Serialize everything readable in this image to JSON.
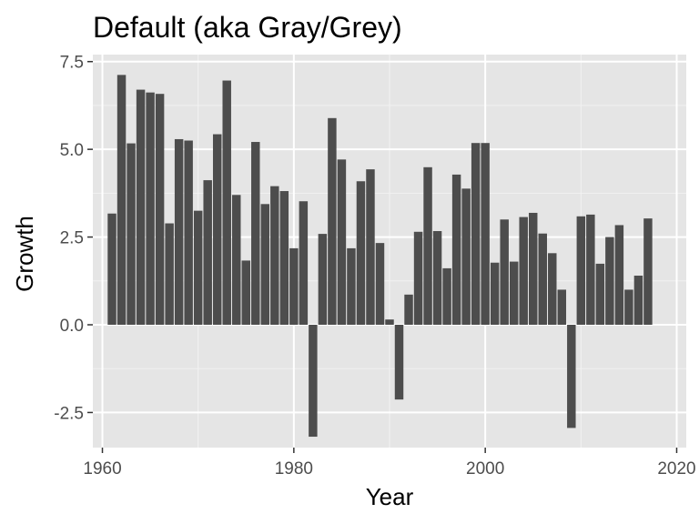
{
  "chart_data": {
    "type": "bar",
    "title": "Default (aka Gray/Grey)",
    "xlabel": "Year",
    "ylabel": "Growth",
    "xlim": [
      1959,
      2021
    ],
    "ylim": [
      -3.5,
      7.7
    ],
    "x_ticks": [
      1960,
      1980,
      2000,
      2020
    ],
    "x_tick_labels": [
      "1960",
      "1980",
      "2000",
      "2020"
    ],
    "y_ticks": [
      -2.5,
      0,
      2.5,
      5,
      7.5
    ],
    "y_tick_labels": [
      "-2.5",
      "0.0",
      "2.5",
      "5.0",
      "7.5"
    ],
    "x": [
      1961,
      1962,
      1963,
      1964,
      1965,
      1966,
      1967,
      1968,
      1969,
      1970,
      1971,
      1972,
      1973,
      1974,
      1975,
      1976,
      1977,
      1978,
      1979,
      1980,
      1981,
      1982,
      1983,
      1984,
      1985,
      1986,
      1987,
      1988,
      1989,
      1990,
      1991,
      1992,
      1993,
      1994,
      1995,
      1996,
      1997,
      1998,
      1999,
      2000,
      2001,
      2002,
      2003,
      2004,
      2005,
      2006,
      2007,
      2008,
      2009,
      2010,
      2011,
      2012,
      2013,
      2014,
      2015,
      2016,
      2017
    ],
    "values": [
      3.17,
      7.12,
      5.17,
      6.7,
      6.62,
      6.58,
      2.89,
      5.29,
      5.25,
      3.25,
      4.12,
      5.43,
      6.96,
      3.7,
      1.83,
      5.21,
      3.44,
      3.95,
      3.81,
      2.18,
      3.52,
      -3.19,
      2.59,
      5.89,
      4.71,
      2.18,
      4.09,
      4.43,
      2.33,
      0.15,
      -2.13,
      0.86,
      2.65,
      4.49,
      2.67,
      1.61,
      4.28,
      3.88,
      5.18,
      5.18,
      1.77,
      3.0,
      1.8,
      3.07,
      3.19,
      2.6,
      2.04,
      1.0,
      -2.94,
      3.09,
      3.14,
      1.74,
      2.5,
      2.84,
      1.0,
      1.4,
      3.03
    ],
    "colors": {
      "panel_background": "#e5e5e5",
      "grid_major": "#ffffff",
      "grid_minor": "#f2f2f2",
      "bar_fill": "#4d4d4d",
      "tick_color": "#333333"
    },
    "grid": true
  }
}
